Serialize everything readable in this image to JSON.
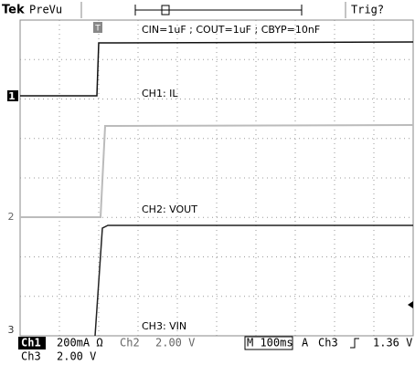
{
  "header": {
    "brand": "Tek",
    "mode": "PreVu",
    "trigger": "Trig?"
  },
  "annotations": [
    "CIN=1uF ; COUT=1uF ; CBYP=10nF",
    "CH1: IL",
    "CH2: VOUT",
    "CH3: VIN"
  ],
  "markers": {
    "trigger": "T",
    "ch1": "1",
    "ch2": "2",
    "ch3": "3"
  },
  "status": {
    "row1": [
      "Ch1",
      "200mA Ω",
      "Ch2",
      "2.00 V",
      "M 100ms",
      "A",
      "Ch3",
      "1.36 V"
    ],
    "row2": [
      "Ch3",
      "2.00 V"
    ]
  }
}
